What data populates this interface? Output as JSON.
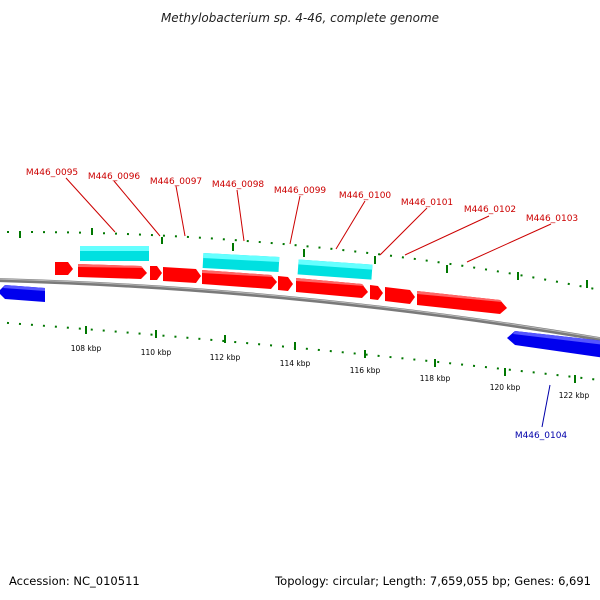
{
  "title": "Methylobacterium sp. 4-46, complete genome",
  "footer": {
    "accession": "Accession: NC_010511",
    "summary": "Topology: circular; Length: 7,659,055 bp; Genes: 6,691"
  },
  "colors": {
    "forward_gene": "#ff0000",
    "reverse_gene": "#0000ff",
    "feature": "#00ffff",
    "backbone": "#808080",
    "ticks": "#007700",
    "forward_label": "#cc0000",
    "reverse_label": "#0000aa"
  },
  "scale": {
    "unit": "kbp",
    "labels": [
      "108 kbp",
      "110 kbp",
      "112 kbp",
      "114 kbp",
      "116 kbp",
      "118 kbp",
      "120 kbp",
      "122 kbp"
    ]
  },
  "genes_forward": [
    {
      "label": "M446_0095"
    },
    {
      "label": "M446_0096"
    },
    {
      "label": "M446_0097"
    },
    {
      "label": "M446_0098"
    },
    {
      "label": "M446_0099"
    },
    {
      "label": "M446_0100"
    },
    {
      "label": "M446_0101"
    },
    {
      "label": "M446_0102"
    },
    {
      "label": "M446_0103"
    }
  ],
  "genes_reverse": [
    {
      "label": "M446_0104"
    }
  ]
}
